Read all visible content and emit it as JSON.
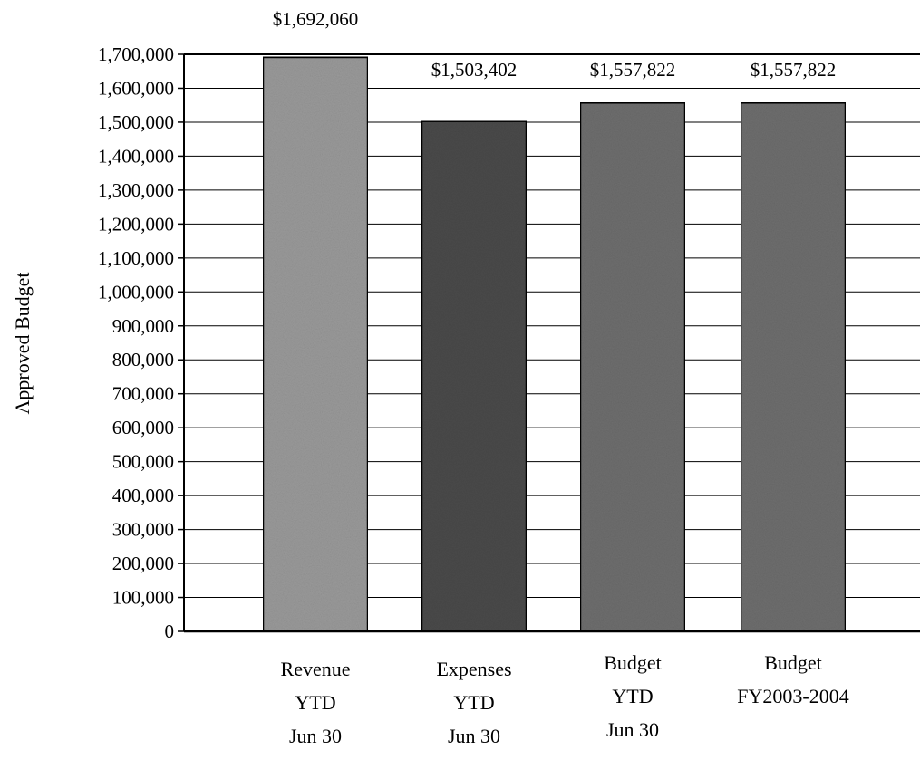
{
  "chart_data": {
    "type": "bar",
    "title": "",
    "xlabel": "",
    "ylabel": "Approved Budget",
    "ylim": [
      0,
      1700000
    ],
    "ytick_step": 100000,
    "grid": true,
    "categories": [
      [
        "Revenue",
        "YTD",
        "Jun 30"
      ],
      [
        "Expenses",
        "YTD",
        "Jun 30"
      ],
      [
        "Budget",
        "YTD",
        "Jun 30"
      ],
      [
        "Budget",
        "FY2003-2004"
      ]
    ],
    "values": [
      1692060,
      1503402,
      1557822,
      1557822
    ],
    "data_labels": [
      "$1,692,060",
      "$1,503,402",
      "$1,557,822",
      "$1,557,822"
    ],
    "colors": [
      "#9a9a9a",
      "#4a4a4a",
      "#6e6e6e",
      "#6e6e6e"
    ],
    "legend": "none"
  }
}
